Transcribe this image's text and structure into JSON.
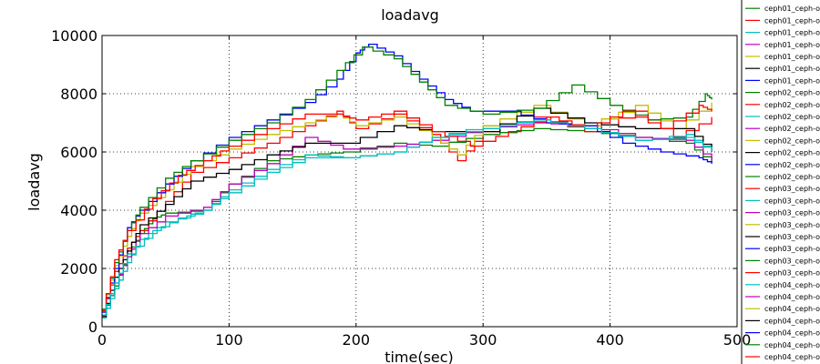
{
  "chart_data": {
    "type": "line",
    "title": "loadavg",
    "xlabel": "time(sec)",
    "ylabel": "loadavg",
    "xlim": [
      0,
      500
    ],
    "ylim": [
      0,
      10000
    ],
    "xticks": [
      0,
      100,
      200,
      300,
      400,
      500
    ],
    "yticks": [
      0,
      2000,
      4000,
      6000,
      8000,
      10000
    ],
    "grid": true,
    "legend_position": "right (clipped)",
    "series": [
      {
        "name": "ceph01_ceph-o",
        "color": "#008000",
        "points": [
          [
            0,
            400
          ],
          [
            10,
            1400
          ],
          [
            20,
            2500
          ],
          [
            30,
            3200
          ],
          [
            40,
            3700
          ],
          [
            50,
            3900
          ],
          [
            80,
            4000
          ],
          [
            100,
            4900
          ],
          [
            130,
            5700
          ],
          [
            160,
            5900
          ],
          [
            190,
            6000
          ],
          [
            230,
            6300
          ],
          [
            260,
            6200
          ],
          [
            300,
            6600
          ],
          [
            340,
            6800
          ],
          [
            380,
            6700
          ],
          [
            420,
            6500
          ],
          [
            460,
            6300
          ],
          [
            480,
            5600
          ]
        ]
      },
      {
        "name": "ceph01_ceph-o",
        "color": "#ff0000",
        "points": [
          [
            0,
            500
          ],
          [
            10,
            1900
          ],
          [
            20,
            2700
          ],
          [
            30,
            3300
          ],
          [
            50,
            4300
          ],
          [
            70,
            5300
          ],
          [
            100,
            5800
          ],
          [
            130,
            6300
          ],
          [
            160,
            6900
          ],
          [
            185,
            7400
          ],
          [
            200,
            6800
          ],
          [
            230,
            7300
          ],
          [
            260,
            6600
          ],
          [
            280,
            5700
          ],
          [
            300,
            6700
          ],
          [
            340,
            7200
          ],
          [
            380,
            6700
          ],
          [
            420,
            7400
          ],
          [
            450,
            6500
          ],
          [
            480,
            7200
          ]
        ]
      },
      {
        "name": "ceph01_ceph-o",
        "color": "#00bfbf",
        "points": [
          [
            0,
            300
          ],
          [
            10,
            1300
          ],
          [
            20,
            2200
          ],
          [
            30,
            3000
          ],
          [
            50,
            3600
          ],
          [
            80,
            4000
          ],
          [
            100,
            4700
          ],
          [
            130,
            5400
          ],
          [
            160,
            5900
          ],
          [
            190,
            5800
          ],
          [
            230,
            6000
          ],
          [
            260,
            6500
          ],
          [
            300,
            6900
          ],
          [
            340,
            7100
          ],
          [
            380,
            6800
          ],
          [
            420,
            6400
          ],
          [
            460,
            6600
          ],
          [
            480,
            6000
          ]
        ]
      },
      {
        "name": "ceph01_ceph-o",
        "color": "#bf00bf",
        "points": [
          [
            0,
            400
          ],
          [
            10,
            1500
          ],
          [
            20,
            2400
          ],
          [
            30,
            3200
          ],
          [
            50,
            3800
          ],
          [
            80,
            4100
          ],
          [
            100,
            4900
          ],
          [
            130,
            5600
          ],
          [
            160,
            6500
          ],
          [
            190,
            6100
          ],
          [
            230,
            6200
          ],
          [
            260,
            6400
          ],
          [
            300,
            6800
          ],
          [
            340,
            7000
          ],
          [
            380,
            6900
          ],
          [
            420,
            6500
          ],
          [
            460,
            6400
          ],
          [
            480,
            5700
          ]
        ]
      },
      {
        "name": "ceph01_ceph-o",
        "color": "#bfbf00",
        "points": [
          [
            0,
            600
          ],
          [
            10,
            2100
          ],
          [
            20,
            3100
          ],
          [
            30,
            3900
          ],
          [
            50,
            4700
          ],
          [
            70,
            5500
          ],
          [
            100,
            6100
          ],
          [
            130,
            6600
          ],
          [
            160,
            7000
          ],
          [
            185,
            7300
          ],
          [
            200,
            6900
          ],
          [
            230,
            7200
          ],
          [
            260,
            6500
          ],
          [
            280,
            5900
          ],
          [
            300,
            6900
          ],
          [
            340,
            7600
          ],
          [
            380,
            6900
          ],
          [
            420,
            7600
          ],
          [
            450,
            6800
          ],
          [
            480,
            7700
          ]
        ]
      },
      {
        "name": "ceph01_ceph-o",
        "color": "#000000",
        "points": [
          [
            0,
            350
          ],
          [
            10,
            1700
          ],
          [
            20,
            2600
          ],
          [
            30,
            3500
          ],
          [
            50,
            4200
          ],
          [
            70,
            5000
          ],
          [
            100,
            5400
          ],
          [
            130,
            5900
          ],
          [
            160,
            6300
          ],
          [
            190,
            6300
          ],
          [
            230,
            6900
          ],
          [
            260,
            6700
          ],
          [
            300,
            6700
          ],
          [
            340,
            7500
          ],
          [
            380,
            7000
          ],
          [
            420,
            6800
          ],
          [
            460,
            6800
          ],
          [
            480,
            6000
          ]
        ]
      },
      {
        "name": "ceph01_ceph-o",
        "color": "#0000ff",
        "points": [
          [
            0,
            500
          ],
          [
            10,
            2000
          ],
          [
            20,
            3400
          ],
          [
            30,
            4000
          ],
          [
            50,
            4900
          ],
          [
            70,
            5700
          ],
          [
            100,
            6500
          ],
          [
            130,
            7100
          ],
          [
            160,
            7700
          ],
          [
            185,
            8500
          ],
          [
            200,
            9400
          ],
          [
            210,
            9700
          ],
          [
            230,
            9300
          ],
          [
            250,
            8500
          ],
          [
            270,
            7800
          ],
          [
            290,
            7400
          ],
          [
            320,
            7400
          ],
          [
            350,
            7000
          ],
          [
            380,
            6900
          ],
          [
            410,
            6300
          ],
          [
            440,
            6000
          ],
          [
            470,
            5800
          ],
          [
            480,
            5600
          ]
        ]
      },
      {
        "name": "ceph02_ceph-o",
        "color": "#008000",
        "points": [
          [
            0,
            600
          ],
          [
            10,
            2200
          ],
          [
            20,
            3300
          ],
          [
            30,
            4100
          ],
          [
            50,
            5100
          ],
          [
            70,
            5700
          ],
          [
            100,
            6400
          ],
          [
            130,
            7000
          ],
          [
            160,
            7800
          ],
          [
            185,
            8800
          ],
          [
            205,
            9600
          ],
          [
            230,
            9200
          ],
          [
            250,
            8400
          ],
          [
            270,
            7600
          ],
          [
            300,
            7300
          ],
          [
            340,
            7500
          ],
          [
            370,
            8300
          ],
          [
            400,
            7600
          ],
          [
            430,
            7100
          ],
          [
            460,
            7200
          ],
          [
            475,
            8000
          ],
          [
            480,
            7800
          ]
        ]
      },
      {
        "name": "ceph02_ceph-o",
        "color": "#ff0000",
        "points": [
          [
            0,
            550
          ],
          [
            10,
            2300
          ],
          [
            20,
            3300
          ],
          [
            40,
            4400
          ],
          [
            60,
            5200
          ],
          [
            80,
            5700
          ],
          [
            100,
            6200
          ],
          [
            130,
            6800
          ],
          [
            160,
            7300
          ],
          [
            185,
            7300
          ],
          [
            200,
            7100
          ],
          [
            230,
            7400
          ],
          [
            260,
            6700
          ],
          [
            290,
            6200
          ],
          [
            320,
            6700
          ],
          [
            350,
            7200
          ],
          [
            380,
            6800
          ],
          [
            410,
            7400
          ],
          [
            440,
            6800
          ],
          [
            470,
            7600
          ],
          [
            480,
            7400
          ]
        ]
      },
      {
        "name": "ceph02_ceph-o",
        "color": "#00bfbf",
        "points": [
          [
            0,
            400
          ],
          [
            10,
            1500
          ],
          [
            20,
            2500
          ],
          [
            40,
            3300
          ],
          [
            60,
            3700
          ],
          [
            80,
            4000
          ],
          [
            100,
            4600
          ],
          [
            130,
            5300
          ],
          [
            160,
            5800
          ],
          [
            190,
            5800
          ],
          [
            230,
            6000
          ],
          [
            260,
            6500
          ],
          [
            300,
            6800
          ],
          [
            340,
            7100
          ],
          [
            380,
            6800
          ],
          [
            420,
            6400
          ],
          [
            460,
            6500
          ],
          [
            480,
            6000
          ]
        ]
      }
    ]
  }
}
